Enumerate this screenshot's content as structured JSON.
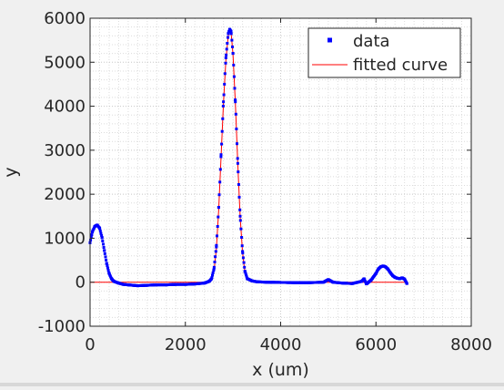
{
  "chart_data": {
    "type": "line",
    "title": "",
    "xlabel": "x (um)",
    "ylabel": "y",
    "xlim": [
      0,
      8000
    ],
    "ylim": [
      -1000,
      6000
    ],
    "xticks": [
      0,
      2000,
      4000,
      6000,
      8000
    ],
    "yticks": [
      -1000,
      0,
      1000,
      2000,
      3000,
      4000,
      5000,
      6000
    ],
    "grid": true,
    "minor_grid": true,
    "legend_placement": "top-right",
    "series": [
      {
        "name": "data",
        "style": "markers",
        "color": "#0000ff",
        "x": [
          0,
          50,
          100,
          150,
          200,
          250,
          300,
          350,
          400,
          450,
          500,
          600,
          700,
          800,
          900,
          1000,
          1200,
          1400,
          1600,
          1800,
          2000,
          2200,
          2400,
          2500,
          2550,
          2600,
          2650,
          2700,
          2750,
          2800,
          2850,
          2900,
          2930,
          2960,
          3000,
          3050,
          3100,
          3150,
          3200,
          3250,
          3300,
          3400,
          3500,
          3700,
          4000,
          4300,
          4600,
          4900,
          5000,
          5100,
          5300,
          5500,
          5700,
          5750,
          5800,
          5900,
          6000,
          6050,
          6100,
          6150,
          6200,
          6250,
          6300,
          6350,
          6400,
          6450,
          6500,
          6550,
          6600,
          6650
        ],
        "y": [
          900,
          1150,
          1270,
          1300,
          1230,
          1020,
          720,
          420,
          200,
          80,
          20,
          -20,
          -50,
          -60,
          -70,
          -80,
          -70,
          -60,
          -60,
          -50,
          -50,
          -40,
          -20,
          20,
          80,
          300,
          800,
          1700,
          2900,
          4100,
          5100,
          5650,
          5750,
          5700,
          5200,
          4100,
          2700,
          1500,
          700,
          250,
          80,
          30,
          10,
          0,
          -5,
          -10,
          -10,
          0,
          60,
          0,
          -20,
          -30,
          20,
          80,
          -40,
          50,
          200,
          300,
          350,
          370,
          350,
          300,
          220,
          150,
          110,
          90,
          80,
          100,
          70,
          -30
        ]
      },
      {
        "name": "fitted curve",
        "style": "line",
        "color": "#ff0000",
        "x": [
          0,
          2400,
          2500,
          2550,
          2600,
          2650,
          2700,
          2750,
          2800,
          2850,
          2900,
          2930,
          2960,
          3000,
          3050,
          3100,
          3150,
          3200,
          3250,
          3300,
          3400,
          3500,
          6650
        ],
        "y": [
          0,
          0,
          10,
          50,
          250,
          750,
          1650,
          2850,
          4050,
          5050,
          5600,
          5720,
          5680,
          5180,
          4080,
          2680,
          1480,
          680,
          230,
          60,
          10,
          0,
          0
        ]
      }
    ]
  },
  "colors": {
    "figure_bg": "#f0f0f0",
    "axes_bg": "#ffffff",
    "axis": "#262626",
    "grid": "#dcdcdc",
    "data_marker": "#0000ff",
    "fit_line": "#ff0000"
  }
}
